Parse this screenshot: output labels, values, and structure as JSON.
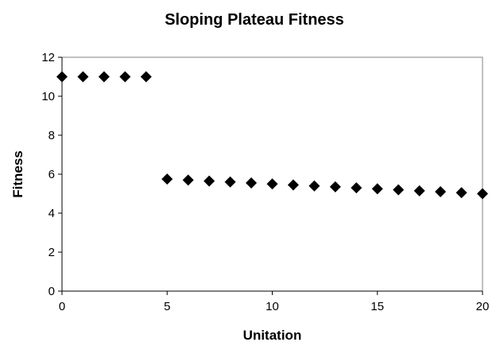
{
  "chart_data": {
    "type": "scatter",
    "title": "Sloping Plateau Fitness",
    "xlabel": "Unitation",
    "ylabel": "Fitness",
    "xlim": [
      0,
      20
    ],
    "ylim": [
      0,
      12
    ],
    "x_ticks": [
      0,
      5,
      10,
      15,
      20
    ],
    "y_ticks": [
      0,
      2,
      4,
      6,
      8,
      10,
      12
    ],
    "grid": false,
    "legend": "none",
    "marker": "diamond",
    "marker_color": "#000000",
    "series": [
      {
        "x": [
          0,
          1,
          2,
          3,
          4,
          5,
          6,
          7,
          8,
          9,
          10,
          11,
          12,
          13,
          14,
          15,
          16,
          17,
          18,
          19,
          20
        ],
        "values": [
          11,
          11,
          11,
          11,
          11,
          5.75,
          5.7,
          5.65,
          5.6,
          5.55,
          5.5,
          5.45,
          5.4,
          5.35,
          5.3,
          5.25,
          5.2,
          5.15,
          5.1,
          5.05,
          5
        ]
      }
    ]
  }
}
